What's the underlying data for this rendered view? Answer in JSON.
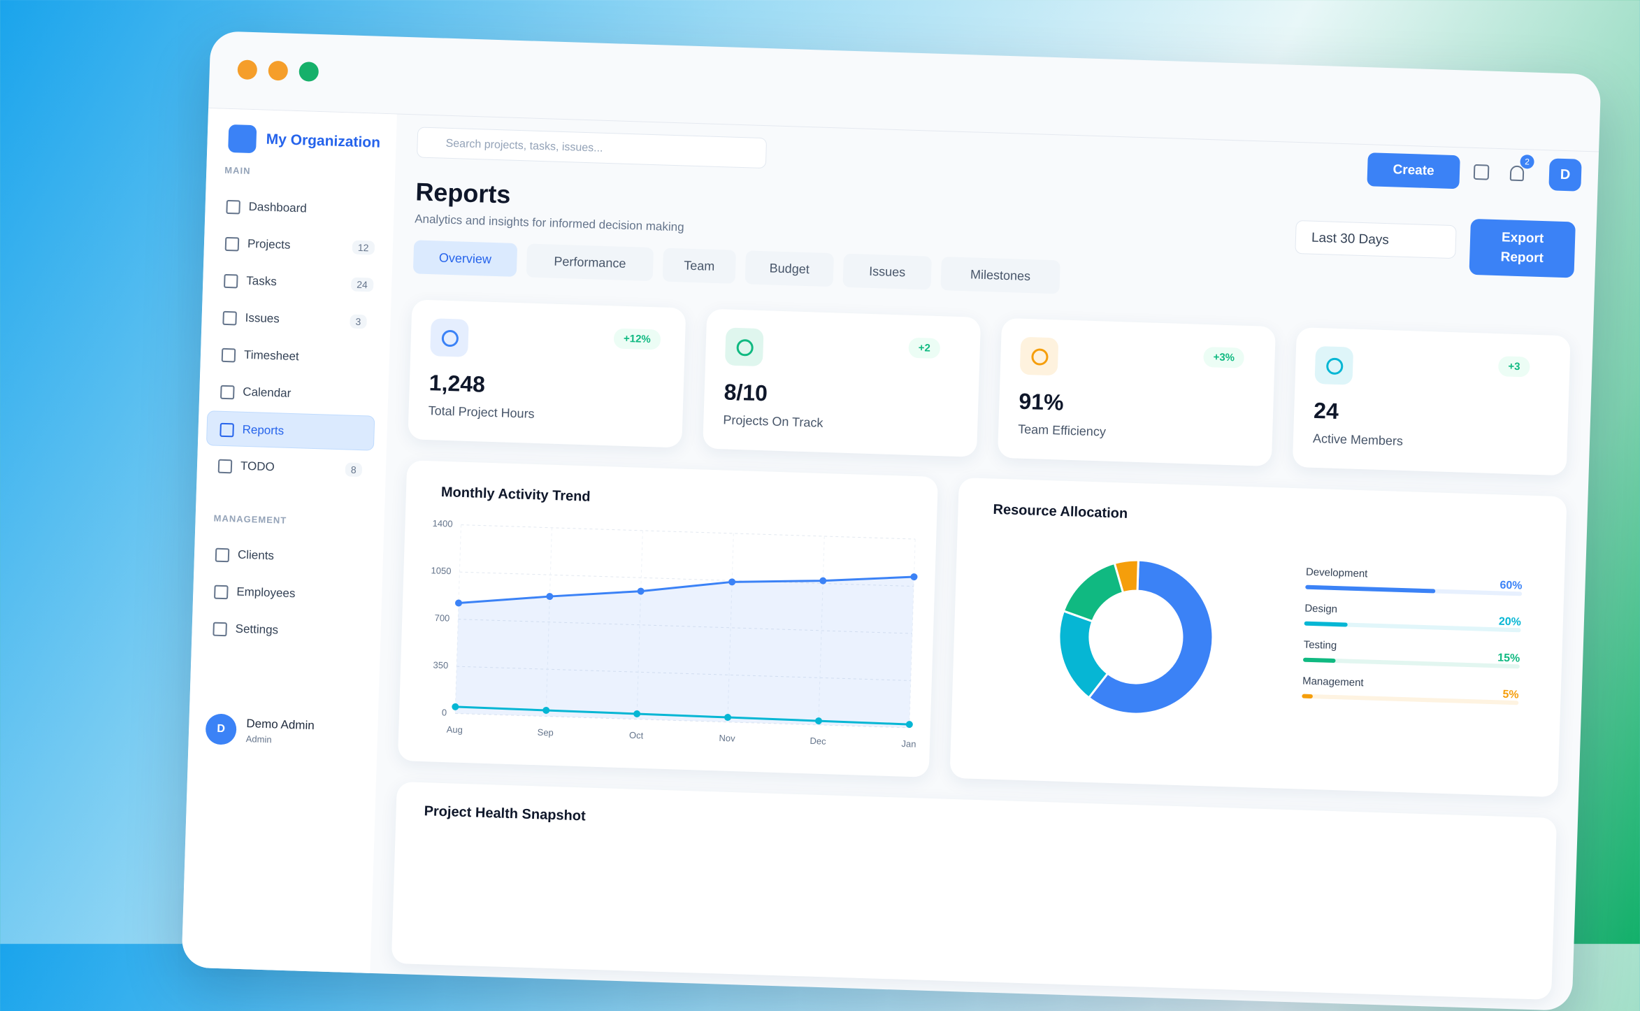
{
  "sidebar": {
    "org": "My Organization",
    "sections": [
      {
        "title": "MAIN",
        "items": [
          {
            "label": "Dashboard"
          },
          {
            "label": "Projects",
            "badge": "12"
          },
          {
            "label": "Tasks",
            "badge": "24"
          },
          {
            "label": "Issues",
            "badge": "3"
          },
          {
            "label": "Timesheet"
          },
          {
            "label": "Calendar"
          },
          {
            "label": "Reports",
            "active": true
          },
          {
            "label": "TODO",
            "badge": "8"
          }
        ]
      },
      {
        "title": "MANAGEMENT",
        "items": [
          {
            "label": "Clients"
          },
          {
            "label": "Employees"
          },
          {
            "label": "Settings"
          }
        ]
      }
    ],
    "user": {
      "initial": "D",
      "name": "Demo Admin",
      "role": "Admin"
    }
  },
  "header": {
    "search_placeholder": "Search projects, tasks, issues...",
    "create": "Create",
    "notifications": "2",
    "avatar": "D"
  },
  "page": {
    "title": "Reports",
    "subtitle": "Analytics and insights for informed decision making",
    "range": "Last 30 Days",
    "export": "Export Report",
    "tabs": [
      {
        "label": "Overview",
        "active": true
      },
      {
        "label": "Performance"
      },
      {
        "label": "Team"
      },
      {
        "label": "Budget"
      },
      {
        "label": "Issues"
      },
      {
        "label": "Milestones"
      }
    ],
    "stats": [
      {
        "value": "1,248",
        "label": "Total Project Hours",
        "delta": "+12%",
        "color": "#3b82f6"
      },
      {
        "value": "8/10",
        "label": "Projects On Track",
        "delta": "+2",
        "color": "#10b981"
      },
      {
        "value": "91%",
        "label": "Team Efficiency",
        "delta": "+3%",
        "color": "#f59e0b"
      },
      {
        "value": "24",
        "label": "Active Members",
        "delta": "+3",
        "color": "#06b6d4"
      }
    ],
    "snapshot_title": "Project Health Snapshot"
  },
  "chart_data": [
    {
      "type": "line",
      "title": "Monthly Activity Trend",
      "categories": [
        "Aug",
        "Sep",
        "Oct",
        "Nov",
        "Dec",
        "Jan"
      ],
      "series": [
        {
          "color": "#3b82f6",
          "values": [
            820,
            890,
            950,
            1040,
            1070,
            1120
          ]
        },
        {
          "color": "#06b6d4",
          "values": [
            50,
            45,
            40,
            35,
            30,
            25
          ]
        }
      ],
      "ylim": [
        0,
        1400
      ],
      "yticks": [
        0,
        350,
        700,
        1050,
        1400
      ],
      "grid": true
    },
    {
      "type": "pie",
      "title": "Resource Allocation",
      "categories": [
        "Development",
        "Design",
        "Testing",
        "Management"
      ],
      "values": [
        60,
        20,
        15,
        5
      ],
      "value_labels": [
        "60%",
        "20%",
        "15%",
        "5%"
      ],
      "colors": [
        "#3b82f6",
        "#06b6d4",
        "#10b981",
        "#f59e0b"
      ],
      "donut": true
    }
  ]
}
